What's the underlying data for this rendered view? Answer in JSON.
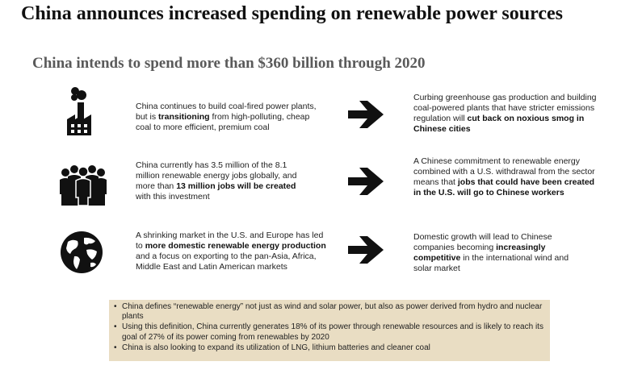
{
  "title": "China announces increased spending on renewable power sources",
  "subtitle": "China intends to spend more than $360 billion through 2020",
  "rows": [
    {
      "icon": "factory-icon",
      "left": [
        {
          "t": "China continues to build coal-fired power plants, but is ",
          "b": false
        },
        {
          "t": "transitioning",
          "b": true
        },
        {
          "t": " from high-polluting, cheap coal to more efficient, premium coal",
          "b": false
        }
      ],
      "right": [
        {
          "t": "Curbing greenhouse gas production and building coal-powered plants that have stricter emissions regulation will ",
          "b": false
        },
        {
          "t": "cut back on noxious smog in Chinese cities",
          "b": true
        }
      ]
    },
    {
      "icon": "people-icon",
      "left": [
        {
          "t": "China currently has 3.5 million of the 8.1 million renewable energy jobs globally, and more than ",
          "b": false
        },
        {
          "t": "13 million jobs will be created",
          "b": true
        },
        {
          "t": " with this investment",
          "b": false
        }
      ],
      "right": [
        {
          "t": "A Chinese commitment to renewable energy combined with a U.S. withdrawal from the sector means that ",
          "b": false
        },
        {
          "t": "jobs that could have been created in the U.S. will go to Chinese workers",
          "b": true
        }
      ]
    },
    {
      "icon": "globe-icon",
      "left": [
        {
          "t": "A shrinking market in the U.S. and Europe has led to ",
          "b": false
        },
        {
          "t": "more domestic renewable energy production",
          "b": true
        },
        {
          "t": " and a focus on exporting to the pan-Asia, Africa, Middle East and Latin American markets",
          "b": false
        }
      ],
      "right": [
        {
          "t": "Domestic growth will lead to Chinese companies becoming ",
          "b": false
        },
        {
          "t": "increasingly competitive",
          "b": true
        },
        {
          "t": " in the international wind and solar market",
          "b": false
        }
      ]
    }
  ],
  "notes": [
    "China defines “renewable energy” not just as wind and solar power, but also as power derived from hydro and nuclear plants",
    "Using this definition, China currently generates 18% of its power through renewable resources and is likely to reach its goal of 27% of its power coming from renewables by 2020",
    "China is also looking to expand its utilization of LNG, lithium batteries and cleaner coal"
  ]
}
